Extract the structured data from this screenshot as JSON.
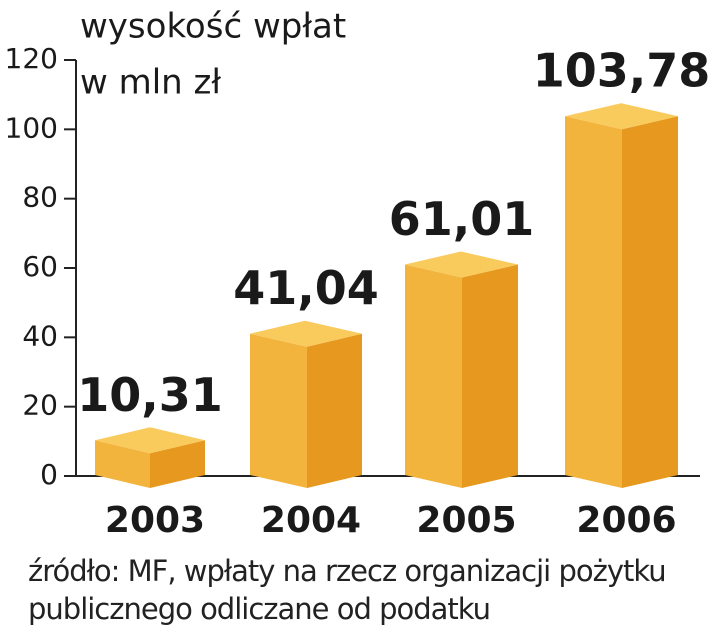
{
  "chart_data": {
    "type": "bar3d",
    "title": "wysokość wpłat",
    "subtitle": "w mln zł",
    "categories": [
      "2003",
      "2004",
      "2005",
      "2006"
    ],
    "values": [
      10.31,
      41.04,
      61.01,
      103.78
    ],
    "value_labels": [
      "10,31",
      "41,04",
      "61,01",
      "103,78"
    ],
    "colors": {
      "front": "#f3b43e",
      "side": "#e6981f",
      "top": "#f9ca5c"
    },
    "ylim": [
      0,
      120
    ],
    "yticks": [
      0,
      20,
      40,
      60,
      80,
      100,
      120
    ],
    "source": "źródło: MF, wpłaty na rzecz organizacji pożytku publicznego odliczane od podatku"
  }
}
